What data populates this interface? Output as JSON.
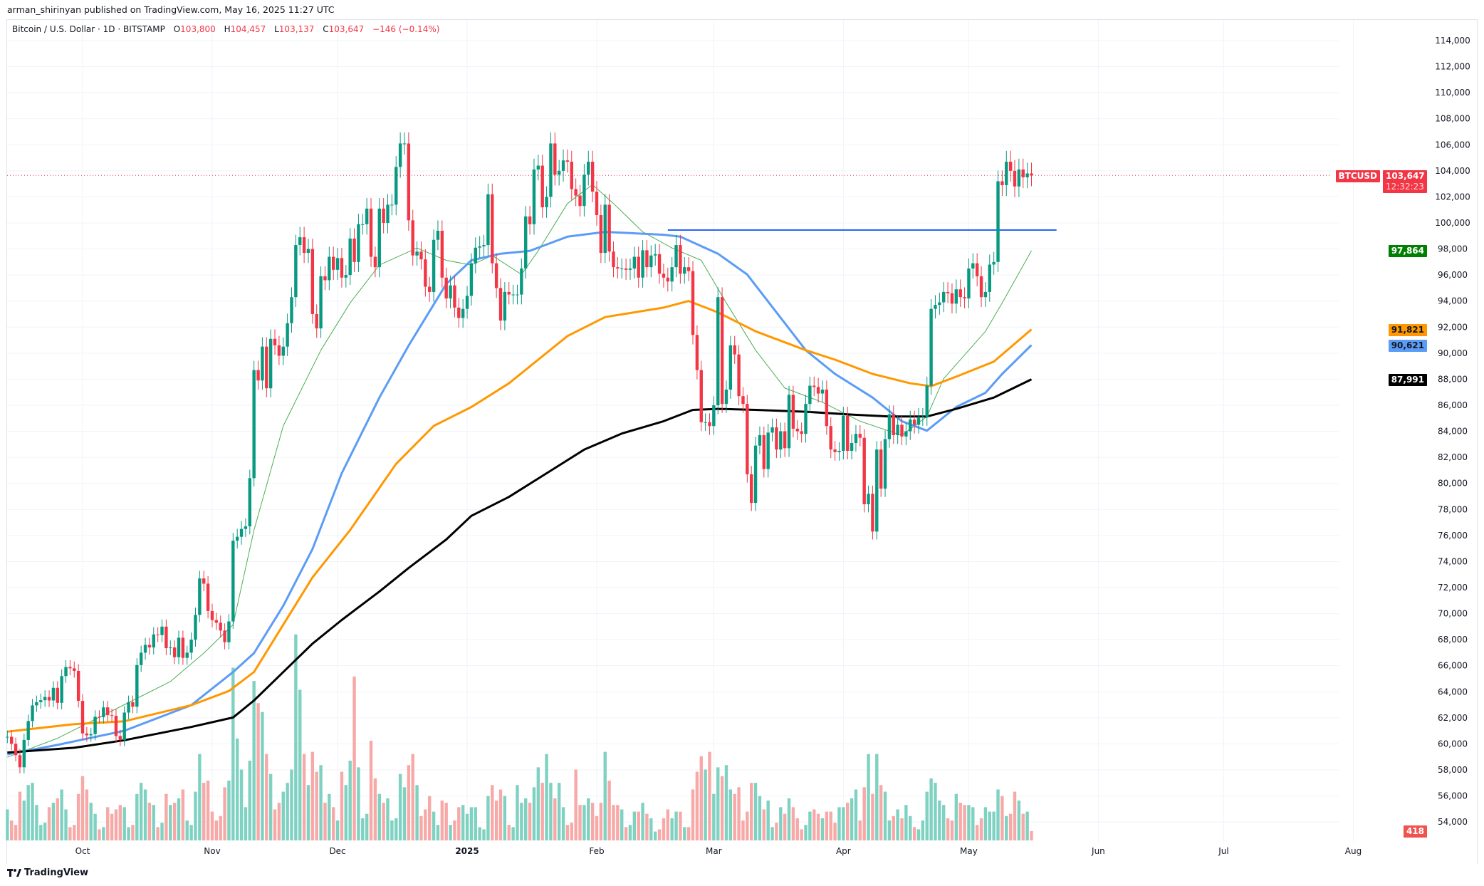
{
  "header": {
    "published": "arman_shirinyan published on TradingView.com, May 16, 2025 11:27 UTC"
  },
  "legend": {
    "symbol": "Bitcoin / U.S. Dollar · 1D · BITSTAMP",
    "o_label": "O",
    "open": "103,800",
    "h_label": "H",
    "high": "104,457",
    "l_label": "L",
    "low": "103,137",
    "c_label": "C",
    "close": "103,647",
    "change": "−146 (−0.14%)"
  },
  "tags": {
    "symbol": "BTCUSD",
    "price": "103,647",
    "countdown": "12:32:23",
    "ma_green": "97,864",
    "ma_orange": "91,821",
    "ma_blue": "90,621",
    "ma_black": "87,991",
    "volume": "418"
  },
  "footer": {
    "brand": "TradingView"
  },
  "colors": {
    "up": "#089981",
    "down": "#f23645",
    "vol_up": "#7fd1c1",
    "vol_down": "#f7a9a7",
    "grid": "#f0f3fa"
  },
  "chart_data": {
    "type": "candlestick",
    "symbol": "BTCUSD",
    "interval": "1D",
    "start_date": "2024-09-13",
    "ylim": [
      53000,
      115000
    ],
    "price_ticks": [
      "114,000",
      "112,000",
      "110,000",
      "108,000",
      "106,000",
      "104,000",
      "102,000",
      "100,000",
      "98,000",
      "96,000",
      "94,000",
      "92,000",
      "90,000",
      "88,000",
      "86,000",
      "84,000",
      "82,000",
      "80,000",
      "78,000",
      "76,000",
      "74,000",
      "72,000",
      "70,000",
      "68,000",
      "66,000",
      "64,000",
      "62,000",
      "60,000",
      "58,000",
      "56,000",
      "54,000"
    ],
    "time_ticks": [
      {
        "label": "Oct",
        "date": "2024-10-01"
      },
      {
        "label": "Nov",
        "date": "2024-11-01"
      },
      {
        "label": "Dec",
        "date": "2024-12-01"
      },
      {
        "label": "2025",
        "date": "2025-01-01"
      },
      {
        "label": "Feb",
        "date": "2025-02-01"
      },
      {
        "label": "Mar",
        "date": "2025-03-01"
      },
      {
        "label": "Apr",
        "date": "2025-04-01"
      },
      {
        "label": "May",
        "date": "2025-05-01"
      },
      {
        "label": "Jun",
        "date": "2025-06-01"
      },
      {
        "label": "Jul",
        "date": "2025-07-01"
      },
      {
        "label": "Aug",
        "date": "2025-08-01"
      }
    ],
    "close": [
      60540,
      60000,
      59130,
      58200,
      60300,
      61750,
      62950,
      63200,
      63350,
      63600,
      63330,
      64300,
      63150,
      65200,
      65900,
      65800,
      65600,
      63300,
      60800,
      60650,
      60750,
      62080,
      62050,
      62800,
      62200,
      62150,
      60600,
      60300,
      62400,
      63200,
      62850,
      66050,
      67000,
      67600,
      67400,
      68400,
      68350,
      69000,
      67350,
      67400,
      66650,
      68150,
      66600,
      67000,
      68000,
      69900,
      72700,
      72300,
      70200,
      69500,
      69300,
      68700,
      67800,
      69400,
      75600,
      75900,
      76500,
      76700,
      80400,
      88700,
      87900,
      90500,
      87300,
      91100,
      90600,
      89800,
      90500,
      92300,
      94300,
      98300,
      98900,
      97700,
      98000,
      93000,
      91900,
      95900,
      95600,
      97400,
      96400,
      97300,
      95800,
      96000,
      98800,
      97000,
      99900,
      99900,
      101100,
      97400,
      96600,
      101100,
      100000,
      101400,
      101400,
      104300,
      106100,
      106100,
      100200,
      97500,
      97800,
      97200,
      95100,
      94700,
      98700,
      99400,
      95800,
      94200,
      95200,
      93500,
      92700,
      93400,
      94400,
      96900,
      98100,
      98200,
      98300,
      102200,
      96900,
      95000,
      92500,
      94700,
      94500,
      94500,
      94500,
      96500,
      100500,
      99900,
      104100,
      104400,
      101200,
      102000,
      106100,
      103700,
      104000,
      104800,
      104700,
      102600,
      102100,
      101300,
      103700,
      104700,
      102400,
      100600,
      97700,
      101400,
      97800,
      96600,
      96500,
      96500,
      96400,
      96500,
      97400,
      95800,
      97900,
      96600,
      97500,
      97600,
      96100,
      95800,
      95500,
      96600,
      98300,
      96100,
      96600,
      96300,
      91400,
      88700,
      84700,
      84700,
      84400,
      86000,
      94300,
      86100,
      87200,
      90600,
      89900,
      86700,
      86100,
      80700,
      78500,
      82900,
      83700,
      81100,
      83900,
      84300,
      82600,
      84000,
      82700,
      86800,
      84200,
      84000,
      83800,
      86100,
      87500,
      87400,
      86900,
      87200,
      84400,
      82600,
      82400,
      82500,
      85200,
      82500,
      83100,
      83800,
      83500,
      78400,
      79200,
      76300,
      82600,
      79600,
      83400,
      85300,
      83700,
      84500,
      83600,
      84000,
      84900,
      84500,
      85100,
      85100,
      87500,
      93400,
      93700,
      93900,
      94700,
      94600,
      93800,
      94900,
      94300,
      94200,
      96500,
      96900,
      95900,
      94300,
      94700,
      96800,
      97000,
      103200,
      102900,
      104700,
      104000,
      102800,
      104100,
      103500,
      103800,
      103647
    ],
    "volume": [
      1400,
      900,
      700,
      2200,
      1800,
      2500,
      2600,
      1600,
      700,
      800,
      1500,
      1700,
      1900,
      2300,
      1400,
      600,
      700,
      2100,
      2900,
      2300,
      1700,
      1200,
      500,
      600,
      1500,
      1200,
      1400,
      1600,
      1500,
      600,
      700,
      2100,
      2600,
      2300,
      1700,
      1600,
      600,
      800,
      2100,
      1600,
      1700,
      1900,
      2300,
      900,
      700,
      2200,
      3900,
      2600,
      2700,
      1300,
      900,
      1100,
      2400,
      2700,
      7800,
      4600,
      3200,
      1500,
      3600,
      7200,
      6200,
      5800,
      3900,
      3000,
      1400,
      1700,
      2200,
      2600,
      3200,
      9300,
      6800,
      3900,
      2500,
      4000,
      3100,
      3400,
      1700,
      2100,
      1500,
      900,
      3100,
      2500,
      3600,
      7400,
      3300,
      1000,
      1200,
      4500,
      2800,
      2100,
      1700,
      1900,
      900,
      1000,
      3000,
      2400,
      3400,
      3900,
      2500,
      1100,
      1400,
      2000,
      1300,
      700,
      1800,
      1700,
      700,
      900,
      1500,
      1600,
      1200,
      1500,
      1500,
      600,
      500,
      2000,
      2500,
      1800,
      2300,
      2000,
      700,
      600,
      2500,
      1700,
      1900,
      1700,
      2400,
      3300,
      2600,
      3900,
      2600,
      1900,
      2600,
      1500,
      700,
      800,
      3200,
      1600,
      1600,
      1900,
      1700,
      1100,
      1700,
      4000,
      2700,
      1600,
      1600,
      1400,
      600,
      700,
      1300,
      1300,
      1700,
      1200,
      1000,
      400,
      500,
      1000,
      1400,
      1000,
      1300,
      1300,
      600,
      600,
      2300,
      3100,
      3800,
      3200,
      4000,
      2100,
      3300,
      2900,
      3400,
      2300,
      2100,
      2400,
      900,
      1300,
      2600,
      2600,
      2000,
      1400,
      1800,
      600,
      800,
      1500,
      1200,
      1900,
      1500,
      1000,
      500,
      700,
      1300,
      1400,
      1200,
      1000,
      1300,
      1300,
      800,
      1500,
      1500,
      1700,
      1900,
      2300,
      900,
      2400,
      3900,
      2100,
      3900,
      2500,
      2200,
      900,
      1100,
      1400,
      1000,
      1600,
      1100,
      600,
      500,
      900,
      2200,
      2800,
      2600,
      1800,
      1600,
      1000,
      900,
      2100,
      1700,
      1600,
      1600,
      1500,
      700,
      1000,
      1500,
      1300,
      1300,
      2300,
      2000,
      1100,
      1200,
      2200,
      1800,
      1200,
      1300,
      418
    ],
    "moving_averages": [
      {
        "color": "#4caf50",
        "width": 1,
        "last": 97864,
        "points": [
          [
            "2024-09-13",
            58971
          ],
          [
            "2024-09-25",
            60426
          ],
          [
            "2024-10-04",
            61880
          ],
          [
            "2024-10-13",
            63330
          ],
          [
            "2024-10-22",
            64784
          ],
          [
            "2024-10-30",
            66966
          ],
          [
            "2024-11-06",
            69149
          ],
          [
            "2024-11-11",
            76417
          ],
          [
            "2024-11-18",
            84413
          ],
          [
            "2024-11-27",
            90226
          ],
          [
            "2024-12-04",
            93858
          ],
          [
            "2024-12-11",
            96767
          ],
          [
            "2024-12-20",
            98074
          ],
          [
            "2024-12-27",
            97128
          ],
          [
            "2025-01-02",
            96767
          ],
          [
            "2025-01-07",
            97495
          ],
          [
            "2025-01-14",
            96040
          ],
          [
            "2025-01-18",
            97855
          ],
          [
            "2025-01-25",
            101492
          ],
          [
            "2025-01-31",
            102942
          ],
          [
            "2025-02-05",
            101492
          ],
          [
            "2025-02-12",
            99310
          ],
          [
            "2025-02-19",
            98074
          ],
          [
            "2025-02-26",
            97128
          ],
          [
            "2025-03-04",
            93858
          ],
          [
            "2025-03-11",
            90226
          ],
          [
            "2025-03-18",
            87317
          ],
          [
            "2025-03-27",
            86228
          ],
          [
            "2025-04-05",
            84774
          ],
          [
            "2025-04-15",
            83685
          ],
          [
            "2025-04-21",
            85135
          ],
          [
            "2025-04-25",
            88044
          ],
          [
            "2025-04-30",
            89860
          ],
          [
            "2025-05-05",
            91676
          ],
          [
            "2025-05-09",
            93858
          ],
          [
            "2025-05-16",
            97864
          ]
        ]
      },
      {
        "color": "#5b9cf6",
        "width": 3,
        "last": 90621,
        "points": [
          [
            "2024-09-13",
            59190
          ],
          [
            "2024-09-25",
            59917
          ],
          [
            "2024-10-11",
            61005
          ],
          [
            "2024-10-27",
            62969
          ],
          [
            "2024-11-06",
            65512
          ],
          [
            "2024-11-11",
            66966
          ],
          [
            "2024-11-18",
            70598
          ],
          [
            "2024-11-25",
            74962
          ],
          [
            "2024-12-02",
            80776
          ],
          [
            "2024-12-11",
            86589
          ],
          [
            "2024-12-18",
            90587
          ],
          [
            "2024-12-27",
            95312
          ],
          [
            "2025-01-02",
            97128
          ],
          [
            "2025-01-09",
            97637
          ],
          [
            "2025-01-16",
            97855
          ],
          [
            "2025-01-25",
            98944
          ],
          [
            "2025-02-03",
            99310
          ],
          [
            "2025-02-17",
            99091
          ],
          [
            "2025-02-21",
            98944
          ],
          [
            "2025-03-02",
            97637
          ],
          [
            "2025-03-09",
            96040
          ],
          [
            "2025-03-16",
            93130
          ],
          [
            "2025-03-23",
            90226
          ],
          [
            "2025-03-30",
            88405
          ],
          [
            "2025-04-08",
            86589
          ],
          [
            "2025-04-15",
            84774
          ],
          [
            "2025-04-21",
            84046
          ],
          [
            "2025-04-28",
            85862
          ],
          [
            "2025-05-05",
            86956
          ],
          [
            "2025-05-09",
            88405
          ],
          [
            "2025-05-16",
            90621
          ]
        ]
      },
      {
        "color": "#ff9800",
        "width": 3,
        "last": 91821,
        "points": [
          [
            "2024-09-13",
            60934
          ],
          [
            "2024-09-29",
            61514
          ],
          [
            "2024-10-11",
            61732
          ],
          [
            "2024-10-27",
            62969
          ],
          [
            "2024-11-05",
            64057
          ],
          [
            "2024-11-11",
            65512
          ],
          [
            "2024-11-18",
            69149
          ],
          [
            "2024-11-25",
            72780
          ],
          [
            "2024-12-04",
            76417
          ],
          [
            "2024-12-15",
            81503
          ],
          [
            "2024-12-24",
            84413
          ],
          [
            "2025-01-02",
            85862
          ],
          [
            "2025-01-11",
            87683
          ],
          [
            "2025-01-18",
            89499
          ],
          [
            "2025-01-25",
            91315
          ],
          [
            "2025-02-03",
            92769
          ],
          [
            "2025-02-17",
            93497
          ],
          [
            "2025-02-23",
            94005
          ],
          [
            "2025-03-02",
            93130
          ],
          [
            "2025-03-11",
            91676
          ],
          [
            "2025-03-23",
            90226
          ],
          [
            "2025-03-30",
            89499
          ],
          [
            "2025-04-08",
            88405
          ],
          [
            "2025-04-17",
            87683
          ],
          [
            "2025-04-22",
            87464
          ],
          [
            "2025-04-28",
            88192
          ],
          [
            "2025-05-07",
            89351
          ],
          [
            "2025-05-16",
            91821
          ]
        ]
      },
      {
        "color": "#000000",
        "width": 3,
        "last": 87991,
        "points": [
          [
            "2024-09-13",
            59332
          ],
          [
            "2024-09-29",
            59698
          ],
          [
            "2024-10-11",
            60278
          ],
          [
            "2024-10-27",
            61295
          ],
          [
            "2024-11-06",
            62023
          ],
          [
            "2024-11-11",
            63330
          ],
          [
            "2024-11-18",
            65512
          ],
          [
            "2024-11-25",
            67694
          ],
          [
            "2024-12-02",
            69510
          ],
          [
            "2024-12-11",
            71692
          ],
          [
            "2024-12-18",
            73507
          ],
          [
            "2024-12-27",
            75690
          ],
          [
            "2025-01-02",
            77505
          ],
          [
            "2025-01-11",
            78960
          ],
          [
            "2025-01-20",
            80776
          ],
          [
            "2025-01-29",
            82591
          ],
          [
            "2025-02-07",
            83828
          ],
          [
            "2025-02-17",
            84774
          ],
          [
            "2025-02-24",
            85643
          ],
          [
            "2025-03-02",
            85720
          ],
          [
            "2025-03-11",
            85643
          ],
          [
            "2025-03-23",
            85501
          ],
          [
            "2025-04-03",
            85282
          ],
          [
            "2025-04-12",
            85135
          ],
          [
            "2025-04-21",
            85135
          ],
          [
            "2025-04-28",
            85720
          ],
          [
            "2025-05-07",
            86589
          ],
          [
            "2025-05-16",
            87991
          ]
        ]
      }
    ],
    "horizontal_lines": [
      {
        "price": 99450,
        "from": "2025-02-18",
        "to": "2025-05-22",
        "color": "#2962ff"
      }
    ],
    "last_price_line": {
      "price": 103647,
      "color": "#f23645"
    }
  }
}
